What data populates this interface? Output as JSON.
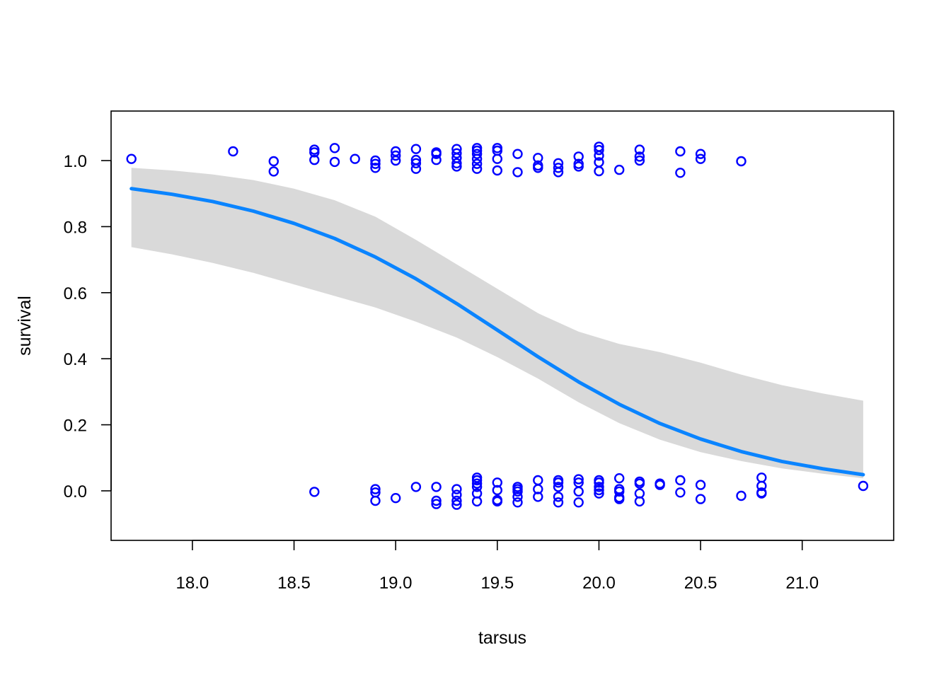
{
  "chart_data": {
    "type": "scatter",
    "title": "",
    "xlabel": "tarsus",
    "ylabel": "survival",
    "xlim": [
      17.6,
      21.45
    ],
    "ylim": [
      -0.15,
      1.15
    ],
    "x_ticks": [
      18.0,
      18.5,
      19.0,
      19.5,
      20.0,
      20.5,
      21.0
    ],
    "x_tick_labels": [
      "18.0",
      "18.5",
      "19.0",
      "19.5",
      "20.0",
      "20.5",
      "21.0"
    ],
    "y_ticks": [
      0.0,
      0.2,
      0.4,
      0.6,
      0.8,
      1.0
    ],
    "y_tick_labels": [
      "0.0",
      "0.2",
      "0.4",
      "0.6",
      "0.8",
      "1.0"
    ],
    "grid": false,
    "legend": "none",
    "colors": {
      "points": "#0000ff",
      "fit_line": "#0a84ff",
      "ci_band": "#d9d9d9",
      "frame": "#000000"
    },
    "fitted_curve": {
      "x": [
        17.7,
        17.9,
        18.1,
        18.3,
        18.5,
        18.7,
        18.9,
        19.1,
        19.3,
        19.5,
        19.7,
        19.9,
        20.1,
        20.3,
        20.5,
        20.7,
        20.9,
        21.1,
        21.3
      ],
      "y": [
        0.915,
        0.898,
        0.876,
        0.847,
        0.81,
        0.764,
        0.708,
        0.642,
        0.567,
        0.487,
        0.406,
        0.33,
        0.262,
        0.204,
        0.157,
        0.119,
        0.089,
        0.067,
        0.049
      ],
      "lower": [
        0.738,
        0.716,
        0.69,
        0.66,
        0.625,
        0.59,
        0.555,
        0.512,
        0.464,
        0.405,
        0.34,
        0.268,
        0.205,
        0.155,
        0.117,
        0.09,
        0.068,
        0.052,
        0.038
      ],
      "upper": [
        0.978,
        0.97,
        0.958,
        0.941,
        0.915,
        0.88,
        0.83,
        0.76,
        0.686,
        0.612,
        0.538,
        0.482,
        0.445,
        0.42,
        0.388,
        0.352,
        0.32,
        0.295,
        0.273
      ]
    },
    "points": [
      {
        "x": 17.7,
        "y": 1.005
      },
      {
        "x": 18.2,
        "y": 1.028
      },
      {
        "x": 18.4,
        "y": 0.998
      },
      {
        "x": 18.4,
        "y": 0.967
      },
      {
        "x": 18.6,
        "y": 1.033
      },
      {
        "x": 18.6,
        "y": 1.025
      },
      {
        "x": 18.6,
        "y": 1.002
      },
      {
        "x": 18.7,
        "y": 1.038
      },
      {
        "x": 18.7,
        "y": 0.996
      },
      {
        "x": 18.8,
        "y": 1.005
      },
      {
        "x": 18.9,
        "y": 1.0
      },
      {
        "x": 18.9,
        "y": 0.99
      },
      {
        "x": 18.9,
        "y": 0.978
      },
      {
        "x": 19.0,
        "y": 1.028
      },
      {
        "x": 19.0,
        "y": 1.015
      },
      {
        "x": 19.0,
        "y": 1.0
      },
      {
        "x": 19.1,
        "y": 1.035
      },
      {
        "x": 19.1,
        "y": 1.002
      },
      {
        "x": 19.1,
        "y": 0.992
      },
      {
        "x": 19.1,
        "y": 0.975
      },
      {
        "x": 19.2,
        "y": 1.025
      },
      {
        "x": 19.2,
        "y": 1.02
      },
      {
        "x": 19.2,
        "y": 1.002
      },
      {
        "x": 19.3,
        "y": 1.035
      },
      {
        "x": 19.3,
        "y": 1.022
      },
      {
        "x": 19.3,
        "y": 1.008
      },
      {
        "x": 19.3,
        "y": 0.992
      },
      {
        "x": 19.3,
        "y": 0.982
      },
      {
        "x": 19.4,
        "y": 1.038
      },
      {
        "x": 19.4,
        "y": 1.03
      },
      {
        "x": 19.4,
        "y": 1.02
      },
      {
        "x": 19.4,
        "y": 1.005
      },
      {
        "x": 19.4,
        "y": 0.99
      },
      {
        "x": 19.4,
        "y": 0.975
      },
      {
        "x": 19.5,
        "y": 1.038
      },
      {
        "x": 19.5,
        "y": 1.03
      },
      {
        "x": 19.5,
        "y": 1.005
      },
      {
        "x": 19.5,
        "y": 0.97
      },
      {
        "x": 19.6,
        "y": 1.02
      },
      {
        "x": 19.6,
        "y": 0.965
      },
      {
        "x": 19.7,
        "y": 1.008
      },
      {
        "x": 19.7,
        "y": 0.985
      },
      {
        "x": 19.7,
        "y": 0.978
      },
      {
        "x": 19.8,
        "y": 0.992
      },
      {
        "x": 19.8,
        "y": 0.978
      },
      {
        "x": 19.8,
        "y": 0.965
      },
      {
        "x": 19.9,
        "y": 1.012
      },
      {
        "x": 19.9,
        "y": 0.99
      },
      {
        "x": 19.9,
        "y": 0.982
      },
      {
        "x": 20.0,
        "y": 1.042
      },
      {
        "x": 20.0,
        "y": 1.032
      },
      {
        "x": 20.0,
        "y": 1.015
      },
      {
        "x": 20.0,
        "y": 0.995
      },
      {
        "x": 20.0,
        "y": 0.968
      },
      {
        "x": 20.1,
        "y": 0.972
      },
      {
        "x": 20.2,
        "y": 1.033
      },
      {
        "x": 20.2,
        "y": 1.012
      },
      {
        "x": 20.2,
        "y": 1.0
      },
      {
        "x": 20.4,
        "y": 1.028
      },
      {
        "x": 20.4,
        "y": 0.963
      },
      {
        "x": 20.5,
        "y": 1.02
      },
      {
        "x": 20.5,
        "y": 1.005
      },
      {
        "x": 20.7,
        "y": 0.998
      },
      {
        "x": 18.6,
        "y": -0.003
      },
      {
        "x": 18.9,
        "y": 0.005
      },
      {
        "x": 18.9,
        "y": -0.005
      },
      {
        "x": 18.9,
        "y": -0.03
      },
      {
        "x": 19.0,
        "y": -0.022
      },
      {
        "x": 19.1,
        "y": 0.012
      },
      {
        "x": 19.2,
        "y": 0.012
      },
      {
        "x": 19.2,
        "y": -0.03
      },
      {
        "x": 19.2,
        "y": -0.04
      },
      {
        "x": 19.3,
        "y": 0.005
      },
      {
        "x": 19.3,
        "y": -0.012
      },
      {
        "x": 19.3,
        "y": -0.03
      },
      {
        "x": 19.3,
        "y": -0.042
      },
      {
        "x": 19.4,
        "y": 0.04
      },
      {
        "x": 19.4,
        "y": 0.032
      },
      {
        "x": 19.4,
        "y": 0.022
      },
      {
        "x": 19.4,
        "y": 0.012
      },
      {
        "x": 19.4,
        "y": -0.008
      },
      {
        "x": 19.4,
        "y": -0.032
      },
      {
        "x": 19.5,
        "y": 0.025
      },
      {
        "x": 19.5,
        "y": 0.002
      },
      {
        "x": 19.5,
        "y": -0.028
      },
      {
        "x": 19.5,
        "y": -0.032
      },
      {
        "x": 19.6,
        "y": 0.012
      },
      {
        "x": 19.6,
        "y": 0.005
      },
      {
        "x": 19.6,
        "y": -0.002
      },
      {
        "x": 19.6,
        "y": -0.018
      },
      {
        "x": 19.6,
        "y": -0.035
      },
      {
        "x": 19.7,
        "y": 0.032
      },
      {
        "x": 19.7,
        "y": 0.005
      },
      {
        "x": 19.7,
        "y": -0.018
      },
      {
        "x": 19.8,
        "y": 0.032
      },
      {
        "x": 19.8,
        "y": 0.025
      },
      {
        "x": 19.8,
        "y": 0.012
      },
      {
        "x": 19.8,
        "y": -0.018
      },
      {
        "x": 19.8,
        "y": -0.035
      },
      {
        "x": 19.9,
        "y": 0.035
      },
      {
        "x": 19.9,
        "y": 0.025
      },
      {
        "x": 19.9,
        "y": -0.002
      },
      {
        "x": 19.9,
        "y": -0.035
      },
      {
        "x": 20.0,
        "y": 0.032
      },
      {
        "x": 20.0,
        "y": 0.025
      },
      {
        "x": 20.0,
        "y": 0.012
      },
      {
        "x": 20.0,
        "y": 0.002
      },
      {
        "x": 20.0,
        "y": -0.008
      },
      {
        "x": 20.1,
        "y": 0.038
      },
      {
        "x": 20.1,
        "y": 0.005
      },
      {
        "x": 20.1,
        "y": -0.002
      },
      {
        "x": 20.1,
        "y": -0.02
      },
      {
        "x": 20.1,
        "y": -0.025
      },
      {
        "x": 20.2,
        "y": 0.028
      },
      {
        "x": 20.2,
        "y": 0.022
      },
      {
        "x": 20.2,
        "y": -0.008
      },
      {
        "x": 20.2,
        "y": -0.032
      },
      {
        "x": 20.3,
        "y": 0.022
      },
      {
        "x": 20.3,
        "y": 0.018
      },
      {
        "x": 20.4,
        "y": 0.032
      },
      {
        "x": 20.4,
        "y": -0.005
      },
      {
        "x": 20.5,
        "y": 0.018
      },
      {
        "x": 20.5,
        "y": -0.025
      },
      {
        "x": 20.7,
        "y": -0.015
      },
      {
        "x": 20.8,
        "y": 0.04
      },
      {
        "x": 20.8,
        "y": 0.015
      },
      {
        "x": 20.8,
        "y": -0.005
      },
      {
        "x": 20.8,
        "y": -0.008
      },
      {
        "x": 21.3,
        "y": 0.015
      }
    ]
  }
}
